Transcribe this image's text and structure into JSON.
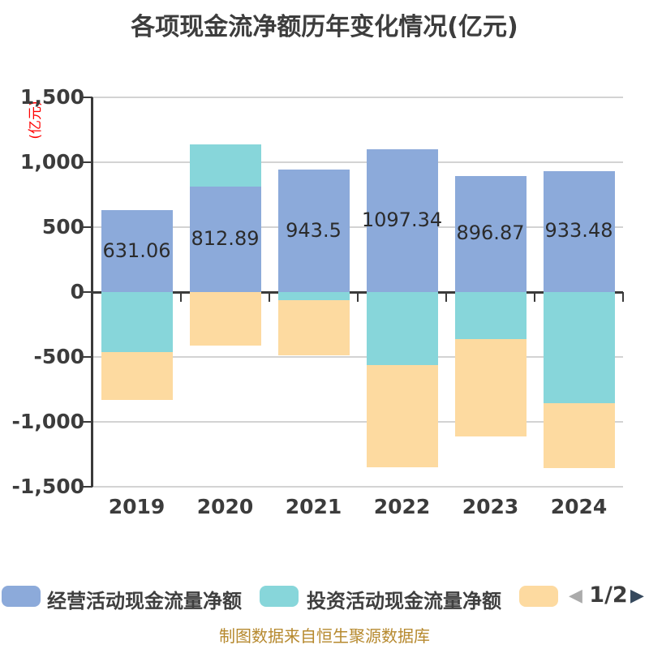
{
  "title": "各项现金流净额历年变化情况(亿元)",
  "y_axis": {
    "unit_label": "(亿元)",
    "ticks": [
      {
        "value": 1500,
        "label": "1,500"
      },
      {
        "value": 1000,
        "label": "1,000"
      },
      {
        "value": 500,
        "label": "500"
      },
      {
        "value": 0,
        "label": "0"
      },
      {
        "value": -500,
        "label": "-500"
      },
      {
        "value": -1000,
        "label": "-1,000"
      },
      {
        "value": -1500,
        "label": "-1,500"
      }
    ]
  },
  "x_axis": {
    "labels": [
      "2019",
      "2020",
      "2021",
      "2022",
      "2023",
      "2024"
    ]
  },
  "legend": {
    "items": [
      {
        "label": "经营活动现金流量净额",
        "color": "#8CAADA"
      },
      {
        "label": "投资活动现金流量净额",
        "color": "#87D6DA"
      },
      {
        "label": "",
        "color": "#FDDAA0"
      }
    ],
    "pagination": {
      "page": "1/2",
      "prev_icon": "◀",
      "next_icon": "▶",
      "prev_color": "#ABABAB",
      "next_color": "#36495D"
    }
  },
  "footer": {
    "note": "制图数据来自恒生聚源数据库",
    "color": "#B6892E"
  },
  "colors": {
    "title": "#3D3D3D",
    "axis_line": "#3A3A3A",
    "grid_line": "#D3D3D3",
    "tick_label": "#3C3C3C",
    "value_label": "#2B2B2B",
    "unit_label": "#FF0000"
  },
  "chart_data": {
    "type": "bar",
    "stacked": true,
    "title": "各项现金流净额历年变化情况(亿元)",
    "ylabel": "(亿元)",
    "categories": [
      "2019",
      "2020",
      "2021",
      "2022",
      "2023",
      "2024"
    ],
    "series": [
      {
        "name": "经营活动现金流量净额",
        "color": "#8CAADA",
        "values": [
          631.06,
          812.89,
          943.5,
          1097.34,
          896.87,
          933.48
        ],
        "data_labels": [
          "631.06",
          "812.89",
          "943.5",
          "1097.34",
          "896.87",
          "933.48"
        ]
      },
      {
        "name": "投资活动现金流量净额",
        "color": "#87D6DA",
        "values": [
          -462,
          325,
          -62,
          -562,
          -361,
          -854
        ]
      },
      {
        "name": "",
        "color": "#FDDAA0",
        "values": [
          -369,
          -412,
          -428,
          -786,
          -750,
          -504
        ]
      }
    ],
    "ylim": [
      -1500,
      1500
    ],
    "ytick_step": 500,
    "grid": true,
    "legend_position": "bottom",
    "legend_page": "1/2"
  }
}
